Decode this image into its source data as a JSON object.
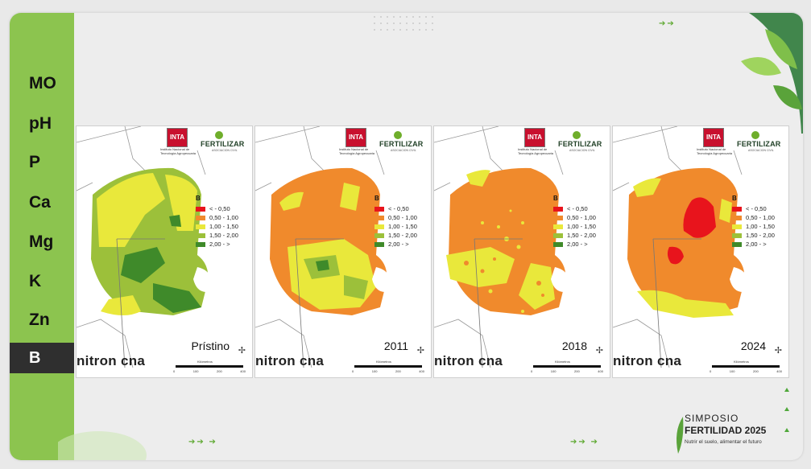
{
  "nutrients": [
    {
      "label": "MO",
      "active": false
    },
    {
      "label": "pH",
      "active": false
    },
    {
      "label": "P",
      "active": false
    },
    {
      "label": "Ca",
      "active": false
    },
    {
      "label": "Mg",
      "active": false
    },
    {
      "label": "K",
      "active": false
    },
    {
      "label": "Zn",
      "active": false
    },
    {
      "label": "B",
      "active": true
    }
  ],
  "legend": {
    "title": "B",
    "entries": [
      {
        "label": "< - 0,50",
        "color": "#e8141c"
      },
      {
        "label": "0,50 - 1,00",
        "color": "#f08a2c"
      },
      {
        "label": "1,00 - 1,50",
        "color": "#e9e83b"
      },
      {
        "label": "1,50 - 2,00",
        "color": "#9cc03a"
      },
      {
        "label": "2,00 - >",
        "color": "#3f8a2a"
      }
    ]
  },
  "inta": {
    "logo": "INTA",
    "subtitle": "Instituto Nacional de Tecnología Agropecuaria"
  },
  "fertilizar": {
    "name": "FERTILIZAR",
    "subtitle": "ASOCIACION CIVIL"
  },
  "nitron": "nitron cna",
  "scale": {
    "label": "Kilómetros",
    "ticks": [
      "0",
      "100",
      "200",
      "400"
    ]
  },
  "maps": [
    {
      "year": "Prístino"
    },
    {
      "year": "2011"
    },
    {
      "year": "2018"
    },
    {
      "year": "2024"
    }
  ],
  "event": {
    "line1": "SIMPOSIO",
    "line2": "FERTILIDAD 2025",
    "tagline": "Nutrir el suelo, alimentar el futuro"
  },
  "colors": {
    "sidebar": "#8cc44f",
    "active": "#2f2f2f"
  }
}
